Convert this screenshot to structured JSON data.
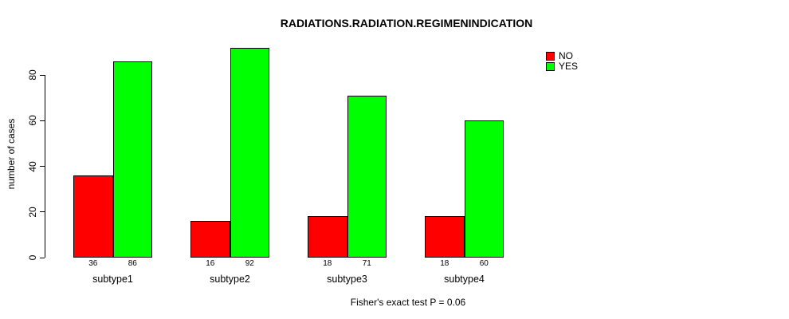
{
  "chart_data": {
    "type": "bar",
    "title": "RADIATIONS.RADIATION.REGIMENINDICATION",
    "ylabel": "number of cases",
    "xlabel": "",
    "categories": [
      "subtype1",
      "subtype2",
      "subtype3",
      "subtype4"
    ],
    "series": [
      {
        "name": "NO",
        "color": "#FF0000",
        "values": [
          36,
          16,
          18,
          18
        ]
      },
      {
        "name": "YES",
        "color": "#00FF00",
        "values": [
          86,
          92,
          71,
          60
        ]
      }
    ],
    "yticks": [
      0,
      20,
      40,
      60,
      80
    ],
    "ylim": [
      0,
      92
    ],
    "grid": false,
    "legend_position": "top-right",
    "bar_value_labels": [
      [
        36,
        86
      ],
      [
        16,
        92
      ],
      [
        18,
        71
      ],
      [
        18,
        60
      ]
    ],
    "annotation": "Fisher's exact test P = 0.06"
  },
  "legend": {
    "items": [
      {
        "label": "NO",
        "color": "#FF0000"
      },
      {
        "label": "YES",
        "color": "#00FF00"
      }
    ]
  }
}
